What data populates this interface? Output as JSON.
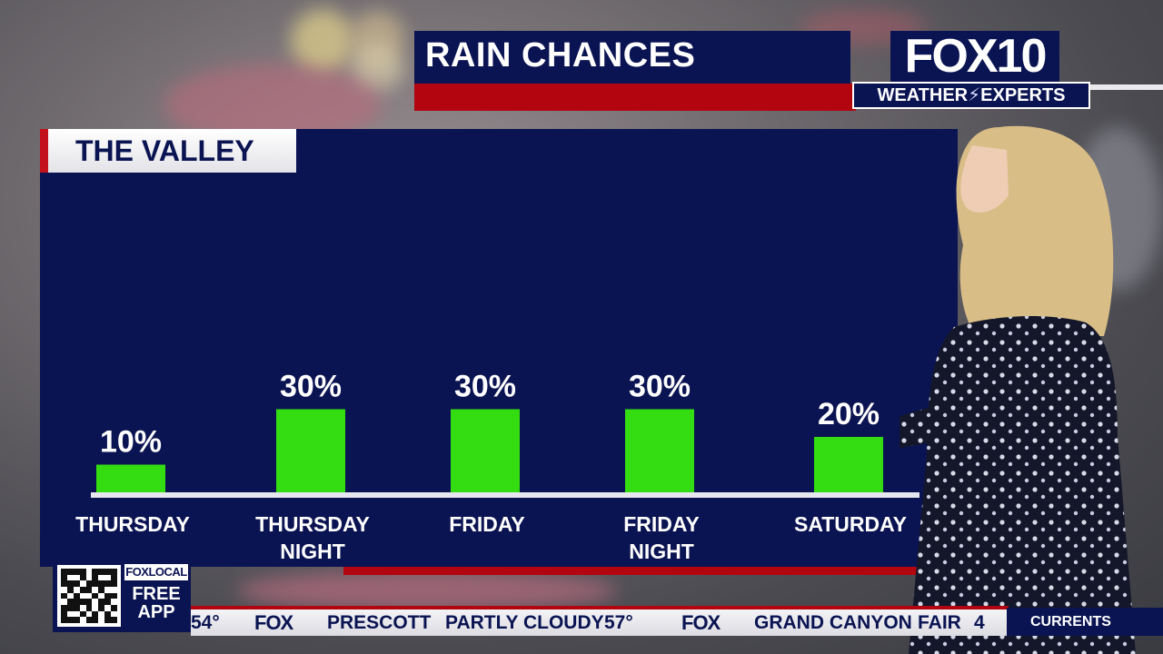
{
  "header": {
    "title": "RAIN CHANCES",
    "logo_main": "FOX10",
    "logo_sub_left": "WEATHER",
    "logo_sub_right": "EXPERTS"
  },
  "panel": {
    "region": "THE VALLEY"
  },
  "chart_data": {
    "type": "bar",
    "categories": [
      [
        "THURSDAY"
      ],
      [
        "THURSDAY",
        "NIGHT"
      ],
      [
        "FRIDAY"
      ],
      [
        "FRIDAY",
        "NIGHT"
      ],
      [
        "SATURDAY"
      ]
    ],
    "values": [
      10,
      30,
      30,
      30,
      20
    ],
    "value_labels": [
      "10%",
      "30%",
      "30%",
      "30%",
      "20%"
    ],
    "ylim": [
      0,
      100
    ],
    "grid": false,
    "bar_color": "#33dd11",
    "background_color": "#0b1452"
  },
  "ticker": {
    "app_badge": "FOXLOCAL",
    "app_line1": "FREE",
    "app_line2": "APP",
    "items": [
      {
        "text": "54°"
      },
      {
        "text": "FOX",
        "fox": true
      },
      {
        "text": "PRESCOTT"
      },
      {
        "text": "PARTLY CLOUDY"
      },
      {
        "text": "57°"
      },
      {
        "text": "FOX",
        "fox": true
      },
      {
        "text": "GRAND CANYON"
      },
      {
        "text": "FAIR"
      },
      {
        "text": "4"
      }
    ],
    "right_label": "CURRENTS"
  },
  "colors": {
    "navy": "#0b1452",
    "red": "#b3050f",
    "green": "#33dd11"
  }
}
